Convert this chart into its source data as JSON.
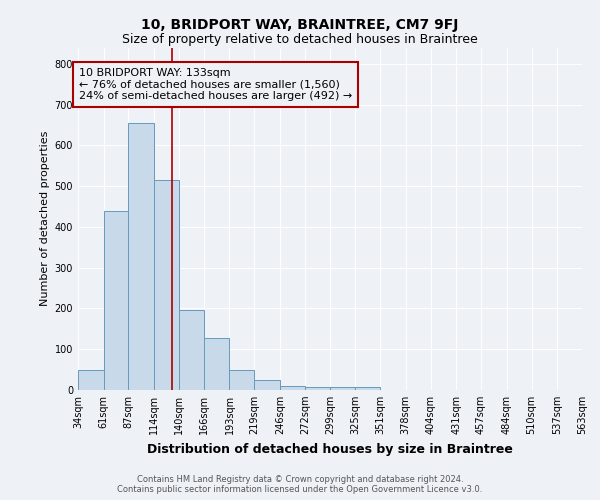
{
  "title": "10, BRIDPORT WAY, BRAINTREE, CM7 9FJ",
  "subtitle": "Size of property relative to detached houses in Braintree",
  "xlabel": "Distribution of detached houses by size in Braintree",
  "ylabel": "Number of detached properties",
  "footer_line1": "Contains HM Land Registry data © Crown copyright and database right 2024.",
  "footer_line2": "Contains public sector information licensed under the Open Government Licence v3.0.",
  "annotation_line1": "10 BRIDPORT WAY: 133sqm",
  "annotation_line2": "← 76% of detached houses are smaller (1,560)",
  "annotation_line3": "24% of semi-detached houses are larger (492) →",
  "bin_edges": [
    34,
    61,
    87,
    114,
    140,
    166,
    193,
    219,
    246,
    272,
    299,
    325,
    351,
    378,
    404,
    431,
    457,
    484,
    510,
    537,
    563
  ],
  "bar_heights": [
    50,
    440,
    655,
    515,
    195,
    127,
    50,
    25,
    10,
    8,
    8,
    8,
    0,
    0,
    0,
    0,
    0,
    0,
    0,
    0
  ],
  "bar_color": "#c8d9ea",
  "bar_edge_color": "#6699bb",
  "red_line_x": 133,
  "annotation_box_color": "#aa0000",
  "ylim_max": 840,
  "yticks": [
    0,
    100,
    200,
    300,
    400,
    500,
    600,
    700,
    800
  ],
  "background_color": "#eef2f7",
  "grid_color": "#ffffff",
  "title_fontsize": 10,
  "subtitle_fontsize": 9,
  "xlabel_fontsize": 9,
  "ylabel_fontsize": 8,
  "tick_fontsize": 7,
  "annot_fontsize": 8,
  "footer_fontsize": 6
}
